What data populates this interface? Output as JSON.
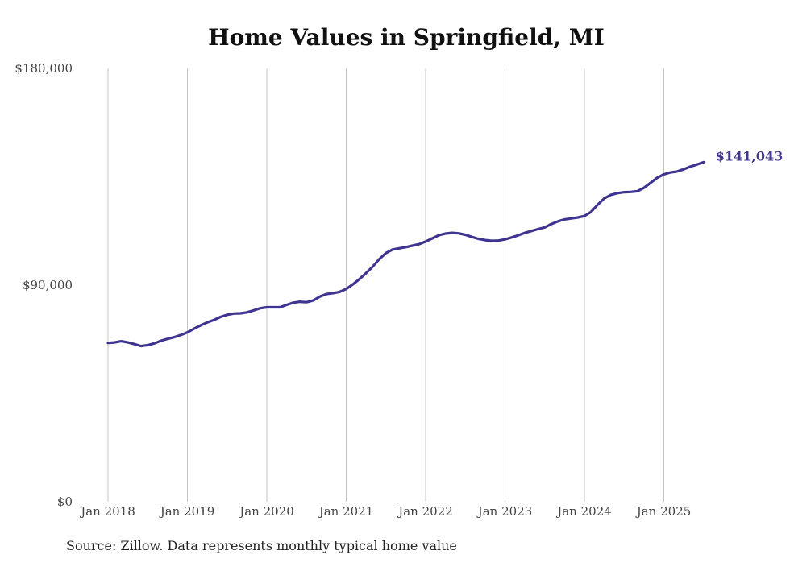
{
  "title": "Home Values in Springfield, MI",
  "source": "Source: Zillow. Data represents monthly typical home value",
  "chart_data": {
    "type": "line",
    "title": "Home Values in Springfield, MI",
    "xlabel": "",
    "ylabel": "",
    "ylim": [
      0,
      180000
    ],
    "y_ticks": [
      {
        "value": 0,
        "label": "$0"
      },
      {
        "value": 90000,
        "label": "$90,000"
      },
      {
        "value": 180000,
        "label": "$180,000"
      }
    ],
    "x_ticks": [
      "Jan 2018",
      "Jan 2019",
      "Jan 2020",
      "Jan 2021",
      "Jan 2022",
      "Jan 2023",
      "Jan 2024",
      "Jan 2025"
    ],
    "grid": "vertical lines at each January",
    "legend": "none",
    "line_color": "#3f3591",
    "end_label": "$141,043",
    "series": [
      {
        "x": [
          "2018-01",
          "2018-02",
          "2018-03",
          "2018-04",
          "2018-05",
          "2018-06",
          "2018-07",
          "2018-08",
          "2018-09",
          "2018-10",
          "2018-11",
          "2018-12",
          "2019-01",
          "2019-02",
          "2019-03",
          "2019-04",
          "2019-05",
          "2019-06",
          "2019-07",
          "2019-08",
          "2019-09",
          "2019-10",
          "2019-11",
          "2019-12",
          "2020-01",
          "2020-02",
          "2020-03",
          "2020-04",
          "2020-05",
          "2020-06",
          "2020-07",
          "2020-08",
          "2020-09",
          "2020-10",
          "2020-11",
          "2020-12",
          "2021-01",
          "2021-02",
          "2021-03",
          "2021-04",
          "2021-05",
          "2021-06",
          "2021-07",
          "2021-08",
          "2021-09",
          "2021-10",
          "2021-11",
          "2021-12",
          "2022-01",
          "2022-02",
          "2022-03",
          "2022-04",
          "2022-05",
          "2022-06",
          "2022-07",
          "2022-08",
          "2022-09",
          "2022-10",
          "2022-11",
          "2022-12",
          "2023-01",
          "2023-02",
          "2023-03",
          "2023-04",
          "2023-05",
          "2023-06",
          "2023-07",
          "2023-08",
          "2023-09",
          "2023-10",
          "2023-11",
          "2023-12",
          "2024-01",
          "2024-02",
          "2024-03",
          "2024-04",
          "2024-05",
          "2024-06",
          "2024-07",
          "2024-08",
          "2024-09",
          "2024-10",
          "2024-11",
          "2024-12",
          "2025-01",
          "2025-02",
          "2025-03",
          "2025-04",
          "2025-05",
          "2025-06",
          "2025-07"
        ],
        "values": [
          66000,
          66200,
          66700,
          66200,
          65500,
          64700,
          65100,
          65800,
          66900,
          67700,
          68400,
          69300,
          70400,
          71900,
          73300,
          74500,
          75500,
          76800,
          77700,
          78200,
          78300,
          78700,
          79500,
          80400,
          80800,
          80800,
          80800,
          81800,
          82700,
          83100,
          82900,
          83600,
          85200,
          86300,
          86700,
          87200,
          88400,
          90300,
          92500,
          95000,
          97700,
          100800,
          103300,
          104800,
          105300,
          105800,
          106400,
          107000,
          108100,
          109400,
          110700,
          111400,
          111700,
          111500,
          110900,
          110000,
          109200,
          108700,
          108400,
          108500,
          109000,
          109800,
          110700,
          111700,
          112500,
          113300,
          114000,
          115400,
          116500,
          117300,
          117700,
          118100,
          118700,
          120400,
          123400,
          126000,
          127500,
          128200,
          128600,
          128700,
          129000,
          130400,
          132500,
          134600,
          136000,
          136800,
          137200,
          138100,
          139200,
          140100,
          141043
        ]
      }
    ]
  }
}
